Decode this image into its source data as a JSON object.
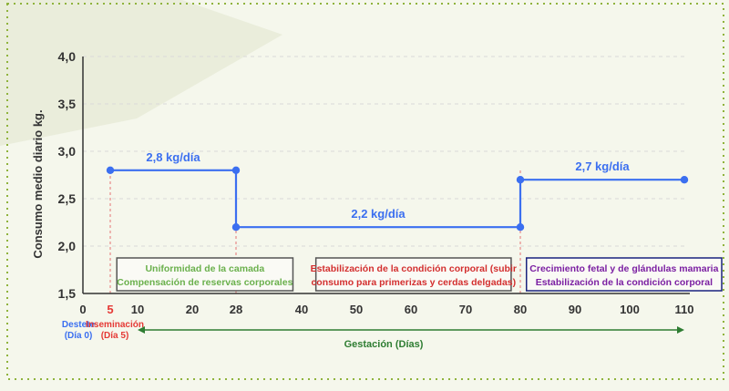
{
  "chart_data": {
    "type": "line",
    "ylabel": "Consumo medio diario  kg.",
    "xlabel": "Gestación (Días)",
    "ylim": [
      1.5,
      4.0
    ],
    "xlim": [
      0,
      110
    ],
    "yticks": [
      "4,0",
      "3,5",
      "3,0",
      "2,5",
      "2,0",
      "1,5"
    ],
    "ytick_values": [
      4.0,
      3.5,
      3.0,
      2.5,
      2.0,
      1.5
    ],
    "xticks": [
      {
        "value": 0,
        "label": "0",
        "color": "#333333"
      },
      {
        "value": 5,
        "label": "5",
        "color": "#e53935"
      },
      {
        "value": 10,
        "label": "10",
        "color": "#333333"
      },
      {
        "value": 20,
        "label": "20",
        "color": "#333333"
      },
      {
        "value": 28,
        "label": "28",
        "color": "#333333"
      },
      {
        "value": 40,
        "label": "40",
        "color": "#333333"
      },
      {
        "value": 50,
        "label": "50",
        "color": "#333333"
      },
      {
        "value": 60,
        "label": "60",
        "color": "#333333"
      },
      {
        "value": 70,
        "label": "70",
        "color": "#333333"
      },
      {
        "value": 80,
        "label": "80",
        "color": "#333333"
      },
      {
        "value": 90,
        "label": "90",
        "color": "#333333"
      },
      {
        "value": 100,
        "label": "100",
        "color": "#333333"
      },
      {
        "value": 110,
        "label": "110",
        "color": "#333333"
      }
    ],
    "grid": true,
    "series": [
      {
        "color": "#3b6ff0",
        "points": [
          [
            5,
            2.8
          ],
          [
            28,
            2.8
          ],
          [
            28,
            2.2
          ],
          [
            80,
            2.2
          ],
          [
            80,
            2.7
          ],
          [
            110,
            2.7
          ]
        ],
        "markers": [
          [
            5,
            2.8
          ],
          [
            28,
            2.8
          ],
          [
            28,
            2.2
          ],
          [
            80,
            2.2
          ],
          [
            80,
            2.7
          ],
          [
            110,
            2.7
          ]
        ]
      }
    ],
    "annotations": [
      {
        "text": "2,8 kg/día",
        "x": 16.5,
        "y": 2.8
      },
      {
        "text": "2,2 kg/día",
        "x": 54,
        "y": 2.2
      },
      {
        "text": "2,7 kg/día",
        "x": 95,
        "y": 2.7
      }
    ],
    "reference_lines": [
      5,
      28,
      80
    ],
    "phases": [
      {
        "lines": [
          "Uniformidad de la camada",
          "Compensación de reservas corporales"
        ],
        "color": "#6ab04c",
        "border": "#555555",
        "x0": 1,
        "x1": 47
      },
      {
        "lines": [
          "Estabilización de la condición corporal (subir",
          "consumo para primerizas y cerdas delgadas)"
        ],
        "color": "#d32f2f",
        "border": "#555555",
        "x0": 53,
        "x1": 104
      },
      {
        "lines": [
          "Crecimiento fetal y de glándulas mamaria",
          "Estabilización de la condición corporal"
        ],
        "color": "#7b1fa2",
        "border": "#1a237e",
        "x0": 108,
        "x1": 159
      }
    ],
    "events": [
      {
        "lines": [
          "Destete",
          "(Día 0)"
        ],
        "color": "#3b6ff0",
        "x": 0
      },
      {
        "lines": [
          "Inseminación",
          "(Día 5)"
        ],
        "color": "#e53935",
        "x": 5
      }
    ],
    "axis_color": "#333333",
    "grid_color": "#d9d9d9",
    "gestation_arrow_color": "#2e7d32"
  }
}
